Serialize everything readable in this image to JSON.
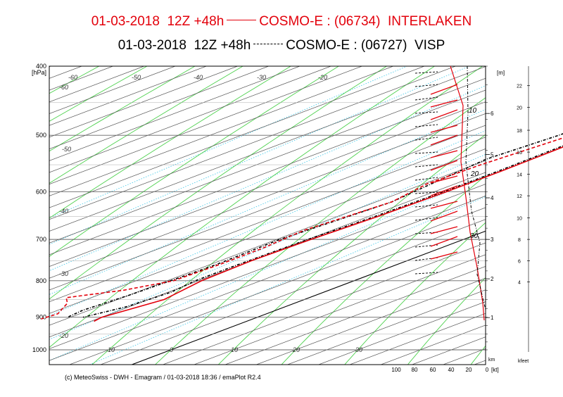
{
  "header": {
    "line1_prefix": "01-03-2018  12Z +48h",
    "line1_suffix": "COSMO-E : (06734)  INTERLAKEN",
    "line2_prefix": "01-03-2018  12Z +48h",
    "line2_suffix": "COSMO-E : (06727)  VISP"
  },
  "footer": "(c) MeteoSwiss - DWH - Emagram / 01-03-2018  18:36 / emaPlot R2.4",
  "chart_data": {
    "type": "emagram",
    "y_axis": {
      "unit_label": "[hPa]",
      "scale": "log",
      "range": [
        1000,
        400
      ],
      "ticks": [
        400,
        500,
        600,
        700,
        800,
        900,
        1000
      ]
    },
    "isotherm_labels": [
      "-60",
      "-60",
      "-50",
      "-40",
      "-30",
      "-20",
      "-50",
      "-40",
      "-30",
      "-20",
      "10",
      "0",
      "10",
      "20",
      "30"
    ],
    "height_m_axis": {
      "label": "[m]",
      "ticks": [
        "6",
        "5",
        "4",
        "3",
        "2",
        "1"
      ],
      "ticks_pressure": [
        466,
        532,
        612,
        700,
        795,
        901
      ]
    },
    "height_kfeet_axis": {
      "label": "kfeet",
      "ticks": [
        "22",
        "20",
        "18",
        "16",
        "14",
        "12",
        "10",
        "8",
        "6",
        "4"
      ],
      "ticks_pressure": [
        426,
        457,
        492,
        528,
        567,
        608,
        653,
        700,
        750,
        803
      ]
    },
    "wind_speed_axis": {
      "km_label": "km",
      "unit": "[kt]",
      "ticks": [
        "100",
        "80",
        "60",
        "40",
        "20",
        "0"
      ]
    },
    "wind_profile_labels": [
      "10",
      "20",
      "30"
    ],
    "colors": {
      "interlaken": "#e3000b",
      "visp": "#000000",
      "isotherm": "#555555",
      "dry_adiabat": "#4dd14d",
      "mixing_ratio": "#39c6e8"
    },
    "series": [
      {
        "name": "COSMO-E : (06734)  INTERLAKEN",
        "temperature": [
          [
            400,
            -25.5
          ],
          [
            450,
            -24.5
          ],
          [
            500,
            -23.5
          ],
          [
            560,
            -23.0
          ],
          [
            600,
            -23.0
          ],
          [
            650,
            -23.5
          ],
          [
            700,
            -24.5
          ],
          [
            750,
            -25.0
          ],
          [
            800,
            -24.5
          ],
          [
            850,
            -22.5
          ],
          [
            900,
            -25.0
          ],
          [
            912,
            -24.5
          ]
        ],
        "dewpoint": [
          [
            400,
            -28.5
          ],
          [
            450,
            -28.0
          ],
          [
            500,
            -27.0
          ],
          [
            550,
            -29.0
          ],
          [
            585,
            -29.5
          ],
          [
            620,
            -27.5
          ],
          [
            680,
            -29.5
          ],
          [
            720,
            -28.5
          ],
          [
            760,
            -28.5
          ],
          [
            800,
            -29.0
          ],
          [
            825,
            -33.0
          ],
          [
            845,
            -39.0
          ],
          [
            860,
            -36.5
          ],
          [
            890,
            -33.5
          ],
          [
            905,
            -34.0
          ]
        ]
      },
      {
        "name": "COSMO-E : (06727)  VISP",
        "temperature": [
          [
            400,
            -26.0
          ],
          [
            450,
            -25.0
          ],
          [
            500,
            -24.0
          ],
          [
            560,
            -23.5
          ],
          [
            600,
            -23.5
          ],
          [
            650,
            -24.0
          ],
          [
            700,
            -25.0
          ],
          [
            760,
            -25.5
          ],
          [
            800,
            -25.5
          ],
          [
            830,
            -24.5
          ],
          [
            870,
            -25.5
          ],
          [
            900,
            -28.0
          ]
        ],
        "dewpoint": [
          [
            400,
            -28.0
          ],
          [
            450,
            -28.5
          ],
          [
            500,
            -29.0
          ],
          [
            540,
            -30.5
          ],
          [
            580,
            -29.0
          ],
          [
            620,
            -27.5
          ],
          [
            660,
            -28.5
          ],
          [
            700,
            -29.5
          ],
          [
            760,
            -29.0
          ],
          [
            800,
            -29.5
          ],
          [
            840,
            -30.0
          ],
          [
            880,
            -31.0
          ],
          [
            900,
            -30.5
          ]
        ]
      }
    ]
  }
}
